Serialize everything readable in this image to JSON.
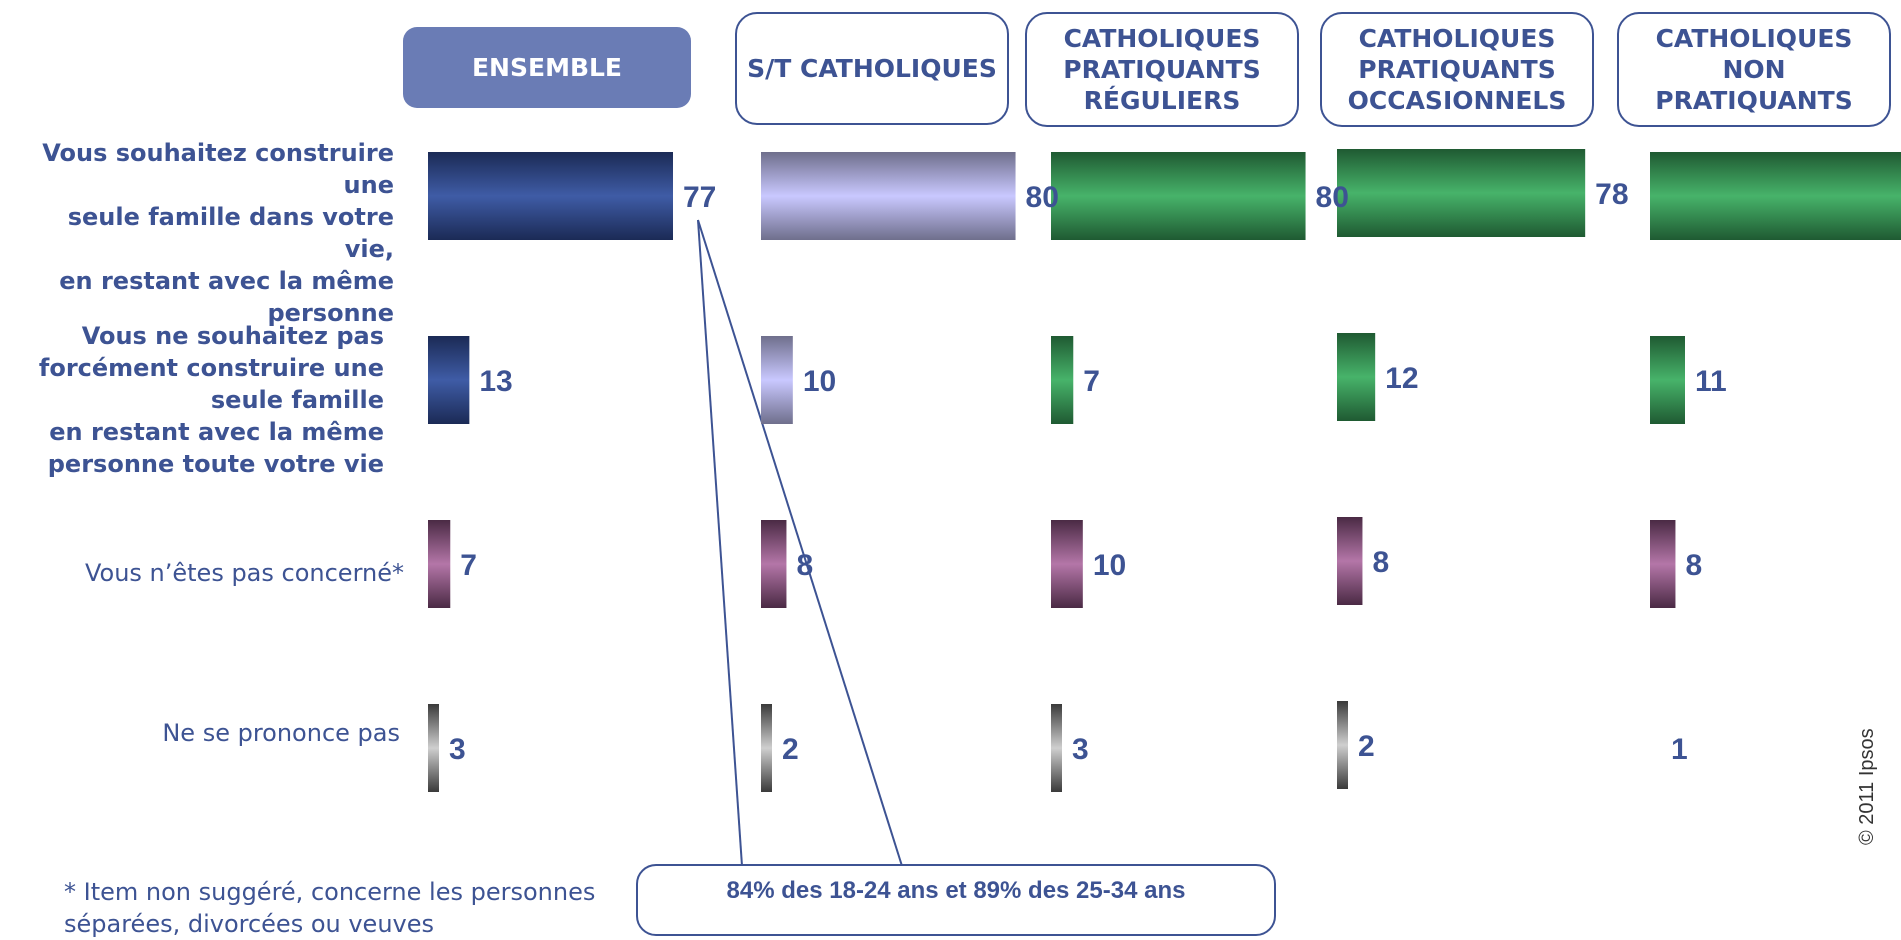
{
  "chart_data": {
    "type": "bar",
    "orientation": "horizontal",
    "groups": [
      {
        "name": "ENSEMBLE",
        "style": "filled",
        "color": "#2f4886"
      },
      {
        "name": "S/T CATHOLIQUES",
        "style": "outline",
        "color": "#b7b6ea"
      },
      {
        "name": "CATHOLIQUES PRATIQUANTS RÉGULIERS",
        "style": "outline",
        "color": "#3aa35a"
      },
      {
        "name": "CATHOLIQUES PRATIQUANTS OCCASIONNELS",
        "style": "outline",
        "color": "#3aa35a"
      },
      {
        "name": "CATHOLIQUES NON PRATIQUANTS",
        "style": "outline",
        "color": "#3aa35a"
      }
    ],
    "categories": [
      {
        "label_lines": [
          "Vous souhaitez construire une",
          "seule famille dans votre vie,",
          "en restant avec la même",
          "personne"
        ],
        "bold": true
      },
      {
        "label_lines": [
          "Vous ne souhaitez pas",
          "forcément construire une",
          "seule famille",
          "en restant avec la même",
          "personne toute votre vie"
        ],
        "bold": true
      },
      {
        "label_lines": [
          "Vous n’êtes pas concerné*"
        ],
        "bold": false,
        "color": "#8a4d7d"
      },
      {
        "label_lines": [
          "Ne se prononce pas"
        ],
        "bold": false,
        "color": "#666666"
      }
    ],
    "values": [
      [
        77,
        80,
        80,
        78,
        80
      ],
      [
        13,
        10,
        7,
        12,
        11
      ],
      [
        7,
        8,
        10,
        8,
        8
      ],
      [
        3,
        2,
        3,
        2,
        1
      ]
    ],
    "value_color": "#3d5393",
    "legend": "none",
    "grid": false,
    "xlim": [
      0,
      100
    ]
  },
  "footnote": "* Item non suggéré, concerne les personnes séparées, divorcées ou veuves",
  "callout": "84% des 18-24 ans et 89% des 25-34 ans",
  "copyright": "© 2011 Ipsos"
}
